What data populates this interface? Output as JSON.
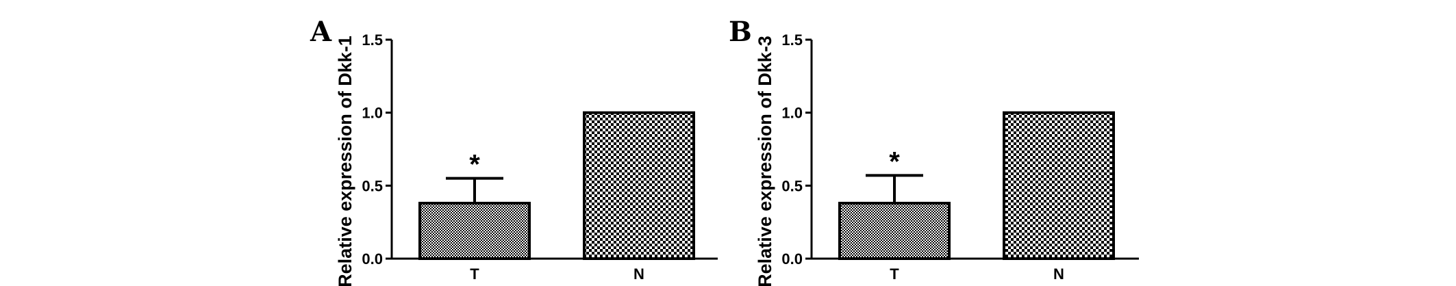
{
  "chart_data": [
    {
      "panel": "A",
      "type": "bar",
      "categories": [
        "T",
        "N"
      ],
      "values": [
        0.38,
        1.0
      ],
      "errors": [
        0.17,
        0
      ],
      "significance": [
        "*",
        ""
      ],
      "patterns": [
        "fine-checker",
        "coarse-checker"
      ],
      "ylabel": "Relative expression of Dkk-1",
      "xlabel": "",
      "title": "",
      "ylim": [
        0,
        1.5
      ],
      "yticks": [
        "0.0",
        "0.5",
        "1.0",
        "1.5"
      ],
      "grid": false
    },
    {
      "panel": "B",
      "type": "bar",
      "categories": [
        "T",
        "N"
      ],
      "values": [
        0.38,
        1.0
      ],
      "errors": [
        0.19,
        0
      ],
      "significance": [
        "*",
        ""
      ],
      "patterns": [
        "fine-checker",
        "coarse-checker"
      ],
      "ylabel": "Relative expression of Dkk-3",
      "xlabel": "",
      "title": "",
      "ylim": [
        0,
        1.5
      ],
      "yticks": [
        "0.0",
        "0.5",
        "1.0",
        "1.5"
      ],
      "grid": false
    }
  ],
  "colors": {
    "ink": "#000000",
    "background": "#ffffff"
  }
}
